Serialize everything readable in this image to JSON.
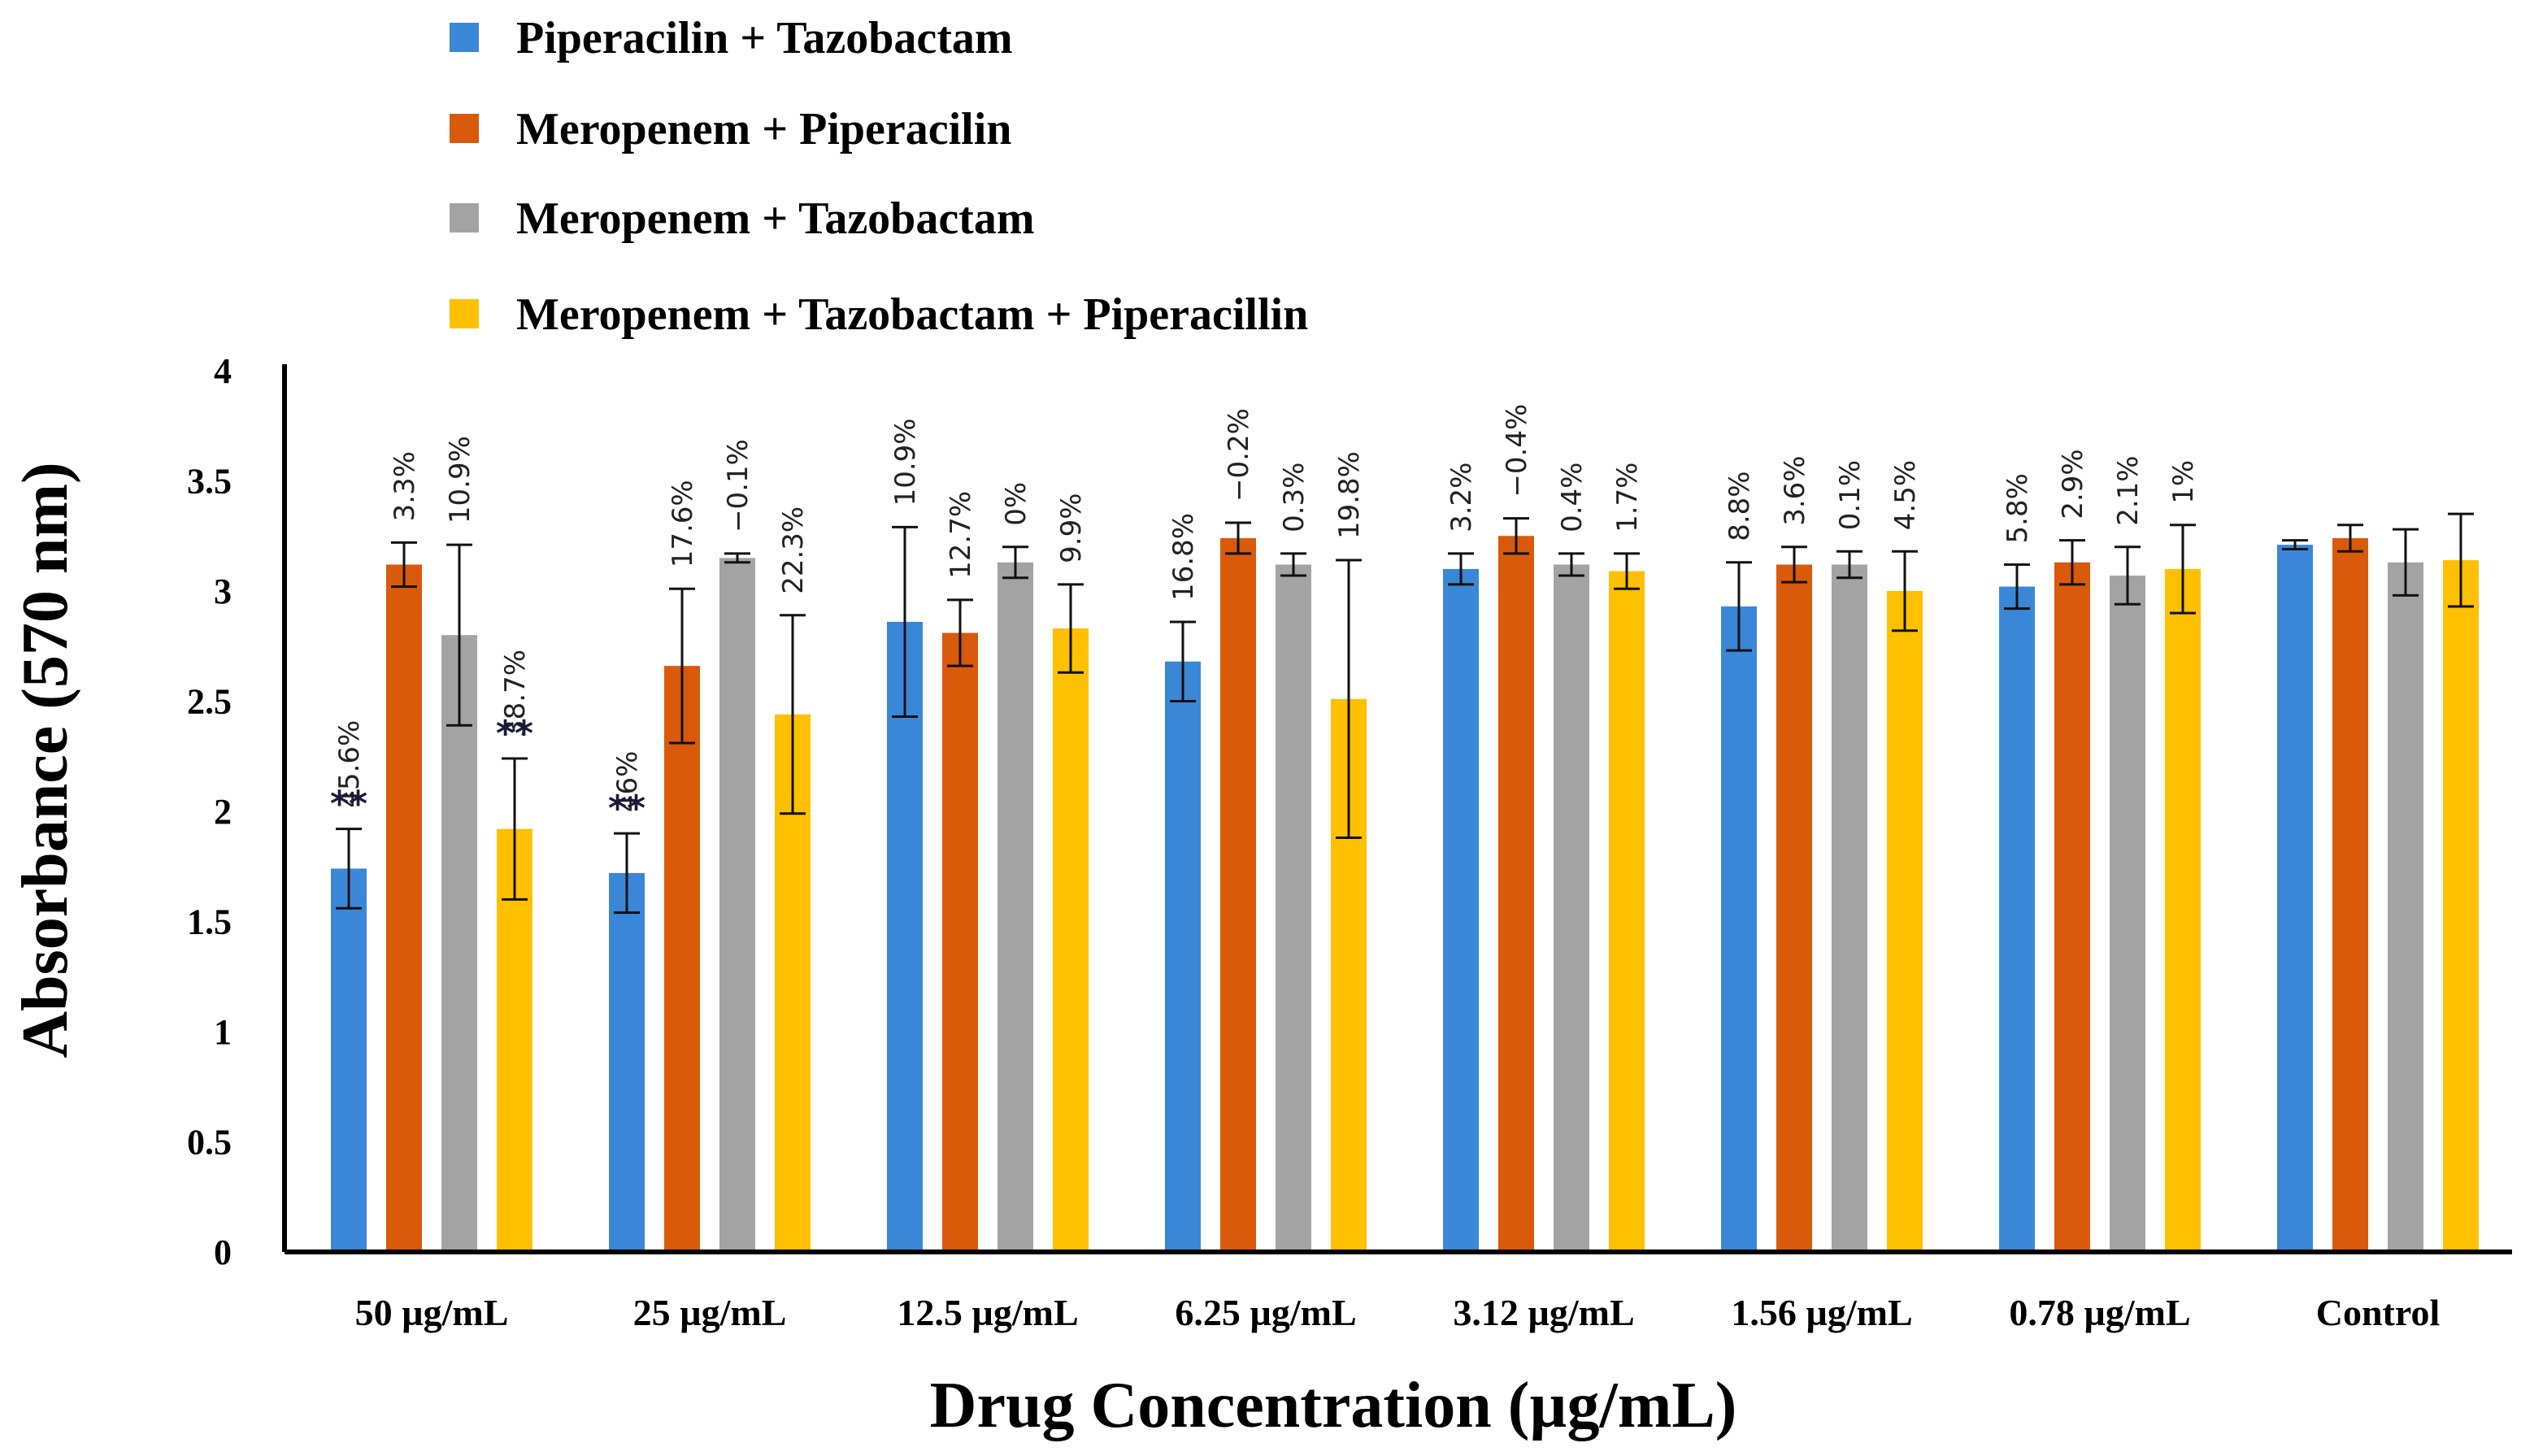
{
  "chart_data": {
    "type": "bar",
    "title": "",
    "xlabel": "Drug Concentration (µg/mL)",
    "ylabel": "Absorbance (570 nm)",
    "ylim": [
      0,
      4
    ],
    "yticks": [
      "0",
      "0.5",
      "1",
      "1.5",
      "2",
      "2.5",
      "3",
      "3.5",
      "4"
    ],
    "grid": false,
    "legend_position": "top-left",
    "categories": [
      "50 µg/mL",
      "25 µg/mL",
      "12.5 µg/mL",
      "6.25 µg/mL",
      "3.12 µg/mL",
      "1.56 µg/mL",
      "0.78 µg/mL",
      "Control"
    ],
    "series": [
      {
        "name": "Piperacilin + Tazobactam",
        "color": "#3A87D8",
        "values": [
          1.74,
          1.72,
          2.86,
          2.68,
          3.1,
          2.93,
          3.02,
          3.21
        ],
        "errors": [
          0.18,
          0.18,
          0.43,
          0.18,
          0.07,
          0.2,
          0.1,
          0.02
        ],
        "labels": [
          "45.6%",
          "46%",
          "10.9%",
          "16.8%",
          "3.2%",
          "8.8%",
          "5.8%",
          ""
        ],
        "stars": [
          "**",
          "**",
          "",
          "",
          "",
          "",
          "",
          ""
        ]
      },
      {
        "name": "Meropenem + Piperacilin",
        "color": "#D85A0A",
        "values": [
          3.12,
          2.66,
          2.81,
          3.24,
          3.25,
          3.12,
          3.13,
          3.24
        ],
        "errors": [
          0.1,
          0.35,
          0.15,
          0.07,
          0.08,
          0.08,
          0.1,
          0.06
        ],
        "labels": [
          "3.3%",
          "17.6%",
          "12.7%",
          "−0.2%",
          "−0.4%",
          "3.6%",
          "2.9%",
          ""
        ],
        "stars": [
          "",
          "",
          "",
          "",
          "",
          "",
          "",
          ""
        ]
      },
      {
        "name": "Meropenem + Tazobactam",
        "color": "#A3A3A3",
        "values": [
          2.8,
          3.15,
          3.13,
          3.12,
          3.12,
          3.12,
          3.07,
          3.13
        ],
        "errors": [
          0.41,
          0.02,
          0.07,
          0.05,
          0.05,
          0.06,
          0.13,
          0.15
        ],
        "labels": [
          "10.9%",
          "−0.1%",
          "0%",
          "0.3%",
          "0.4%",
          "0.1%",
          "2.1%",
          ""
        ],
        "stars": [
          "",
          "",
          "",
          "",
          "",
          "",
          "",
          ""
        ]
      },
      {
        "name": "Meropenem + Tazobactam + Piperacillin",
        "color": "#FFC000",
        "values": [
          1.92,
          2.44,
          2.83,
          2.51,
          3.09,
          3.0,
          3.1,
          3.14
        ],
        "errors": [
          0.32,
          0.45,
          0.2,
          0.63,
          0.08,
          0.18,
          0.2,
          0.21
        ],
        "labels": [
          "38.7%",
          "22.3%",
          "9.9%",
          "19.8%",
          "1.7%",
          "4.5%",
          "1%",
          ""
        ],
        "stars": [
          "**",
          "",
          "",
          "",
          "",
          "",
          "",
          ""
        ]
      }
    ]
  }
}
